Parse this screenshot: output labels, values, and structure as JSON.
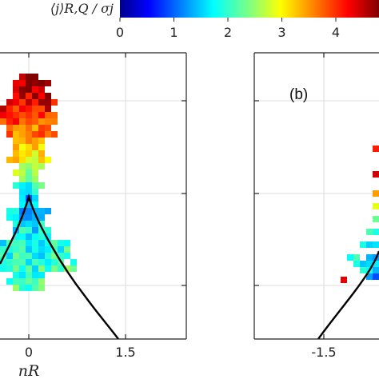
{
  "chart_data": {
    "type": "heatmap",
    "colorbar": {
      "label": "⟨j⟩R,Q / σj",
      "ticks": [
        0,
        1,
        2,
        3,
        4
      ],
      "range": [
        0,
        4.8
      ],
      "colormap": "jet"
    },
    "panels": [
      {
        "label": "",
        "xlabel": "nR",
        "xticks": [
          "0",
          "1.5"
        ],
        "xlim": [
          -1.5,
          1.8
        ],
        "grid": true
      },
      {
        "label": "(b)",
        "xlabel": "",
        "xticks": [
          "-1.5"
        ],
        "xlim": [
          -2.3,
          0.5
        ],
        "grid": true
      }
    ]
  }
}
